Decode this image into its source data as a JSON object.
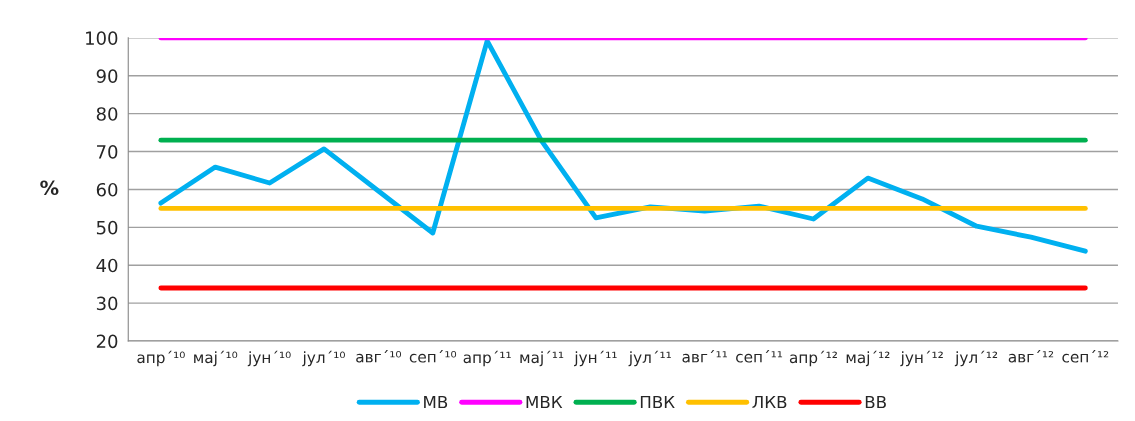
{
  "chart_data": {
    "type": "line",
    "ylabel": "%",
    "categories": [
      "апр´¹⁰",
      "мај´¹⁰",
      "јун´¹⁰",
      "јул´¹⁰",
      "авг´¹⁰",
      "сеп´¹⁰",
      "апр´¹¹",
      "мај´¹¹",
      "јун´¹¹",
      "јул´¹¹",
      "авг´¹¹",
      "сеп´¹¹",
      "апр´¹²",
      "мај´¹²",
      "јун´¹²",
      "јул´¹²",
      "авг´¹²",
      "сеп´¹²"
    ],
    "series": [
      {
        "name": "МВ",
        "color": "#00b0f0",
        "values": [
          56.4,
          65.9,
          61.7,
          70.7,
          59.6,
          48.5,
          99.2,
          72.8,
          52.5,
          55.4,
          54.3,
          55.6,
          52.2,
          63.0,
          57.5,
          50.3,
          47.4,
          43.7
        ]
      },
      {
        "name": "МВК",
        "color": "#ff00ff",
        "values": [
          100,
          100,
          100,
          100,
          100,
          100,
          100,
          100,
          100,
          100,
          100,
          100,
          100,
          100,
          100,
          100,
          100,
          100
        ]
      },
      {
        "name": "ПВК",
        "color": "#00b050",
        "values": [
          73,
          73,
          73,
          73,
          73,
          73,
          73,
          73,
          73,
          73,
          73,
          73,
          73,
          73,
          73,
          73,
          73,
          73
        ]
      },
      {
        "name": "ЛКВ",
        "color": "#ffc000",
        "values": [
          55,
          55,
          55,
          55,
          55,
          55,
          55,
          55,
          55,
          55,
          55,
          55,
          55,
          55,
          55,
          55,
          55,
          55
        ]
      },
      {
        "name": "ВВ",
        "color": "#ff0000",
        "values": [
          34,
          34,
          34,
          34,
          34,
          34,
          34,
          34,
          34,
          34,
          34,
          34,
          34,
          34,
          34,
          34,
          34,
          34
        ]
      }
    ],
    "ylim": [
      20,
      100
    ],
    "yticks": [
      20,
      30,
      40,
      50,
      60,
      70,
      80,
      90,
      100
    ],
    "grid": "y",
    "legend": "bottom",
    "marker": "none",
    "line_style": "solid"
  }
}
